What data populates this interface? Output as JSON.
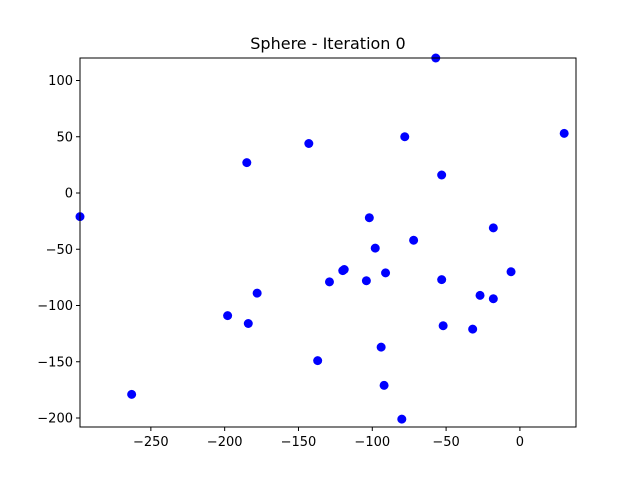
{
  "chart_data": {
    "type": "scatter",
    "title": "Sphere - Iteration 0",
    "xlabel": "",
    "ylabel": "",
    "xlim": [
      -298,
      38
    ],
    "ylim": [
      -208,
      120
    ],
    "xticks": [
      -250,
      -200,
      -150,
      -100,
      -50,
      0
    ],
    "yticks": [
      -200,
      -150,
      -100,
      -50,
      0,
      50,
      100
    ],
    "grid": false,
    "color": "#0000ff",
    "points": [
      {
        "x": -298,
        "y": -21
      },
      {
        "x": -263,
        "y": -179
      },
      {
        "x": -198,
        "y": -109
      },
      {
        "x": -185,
        "y": 27
      },
      {
        "x": -184,
        "y": -116
      },
      {
        "x": -178,
        "y": -89
      },
      {
        "x": -143,
        "y": 44
      },
      {
        "x": -137,
        "y": -149
      },
      {
        "x": -129,
        "y": -79
      },
      {
        "x": -119,
        "y": -68
      },
      {
        "x": -120,
        "y": -69
      },
      {
        "x": -104,
        "y": -78
      },
      {
        "x": -102,
        "y": -22
      },
      {
        "x": -98,
        "y": -49
      },
      {
        "x": -94,
        "y": -137
      },
      {
        "x": -92,
        "y": -171
      },
      {
        "x": -91,
        "y": -71
      },
      {
        "x": -80,
        "y": -201
      },
      {
        "x": -78,
        "y": 50
      },
      {
        "x": -72,
        "y": -42
      },
      {
        "x": -57,
        "y": 120
      },
      {
        "x": -53,
        "y": 16
      },
      {
        "x": -53,
        "y": -77
      },
      {
        "x": -52,
        "y": -118
      },
      {
        "x": -32,
        "y": -121
      },
      {
        "x": -27,
        "y": -91
      },
      {
        "x": -18,
        "y": -31
      },
      {
        "x": -18,
        "y": -94
      },
      {
        "x": -6,
        "y": -70
      },
      {
        "x": 30,
        "y": 53
      }
    ]
  }
}
